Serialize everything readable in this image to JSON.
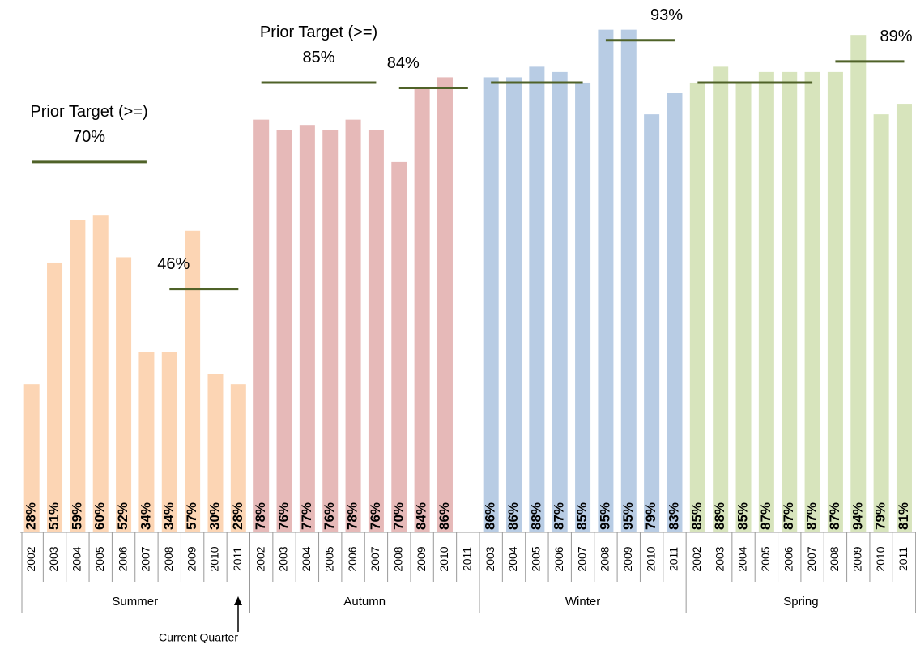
{
  "chart_data": {
    "type": "grouped-bar",
    "ylim": [
      0,
      100
    ],
    "target_color": "#4f6228",
    "annotation": "Current Quarter",
    "groups": [
      {
        "name": "Summer",
        "color": "#fcd5b4",
        "categories": [
          "2002",
          "2003",
          "2004",
          "2005",
          "2006",
          "2007",
          "2008",
          "2009",
          "2010",
          "2011"
        ],
        "values": [
          28,
          51,
          59,
          60,
          52,
          34,
          34,
          57,
          30,
          28
        ],
        "value_labels": [
          "28%",
          "51%",
          "59%",
          "60%",
          "52%",
          "34%",
          "34%",
          "57%",
          "30%",
          "28%"
        ],
        "targets": [
          70,
          70,
          70,
          70,
          70,
          70,
          46,
          46,
          46,
          46
        ],
        "target_notes": [
          {
            "title": "Prior Target (>=)",
            "label": "70%"
          },
          {
            "label": "46%"
          }
        ]
      },
      {
        "name": "Autumn",
        "color": "#e6b9b8",
        "categories": [
          "2002",
          "2003",
          "2004",
          "2005",
          "2006",
          "2007",
          "2008",
          "2009",
          "2010",
          "2011"
        ],
        "values": [
          78,
          76,
          77,
          76,
          78,
          76,
          70,
          84,
          86,
          null
        ],
        "value_labels": [
          "78%",
          "76%",
          "77%",
          "76%",
          "78%",
          "76%",
          "70%",
          "84%",
          "86%",
          null
        ],
        "targets": [
          85,
          85,
          85,
          85,
          85,
          85,
          84,
          84,
          84,
          84
        ],
        "target_notes": [
          {
            "title": "Prior Target (>=)",
            "label": "85%"
          },
          {
            "label": "84%"
          }
        ]
      },
      {
        "name": "Winter",
        "color": "#b8cce4",
        "categories": [
          "2003",
          "2004",
          "2005",
          "2006",
          "2007",
          "2008",
          "2009",
          "2010",
          "2011"
        ],
        "values": [
          86,
          86,
          88,
          87,
          85,
          95,
          95,
          79,
          83
        ],
        "value_labels": [
          "86%",
          "86%",
          "88%",
          "87%",
          "85%",
          "95%",
          "95%",
          "79%",
          "83%"
        ],
        "targets": [
          85,
          85,
          85,
          85,
          85,
          93,
          93,
          93,
          93
        ],
        "target_notes": [
          null,
          {
            "label": "93%"
          }
        ]
      },
      {
        "name": "Spring",
        "color": "#d7e4bc",
        "categories": [
          "2002",
          "2003",
          "2004",
          "2005",
          "2006",
          "2007",
          "2008",
          "2009",
          "2010",
          "2011"
        ],
        "values": [
          85,
          88,
          85,
          87,
          87,
          87,
          87,
          94,
          79,
          81
        ],
        "value_labels": [
          "85%",
          "88%",
          "85%",
          "87%",
          "87%",
          "87%",
          "87%",
          "94%",
          "79%",
          "81%"
        ],
        "targets": [
          85,
          85,
          85,
          85,
          85,
          85,
          89,
          89,
          89,
          89
        ],
        "target_notes": [
          null,
          {
            "label": "89%"
          }
        ]
      }
    ]
  }
}
